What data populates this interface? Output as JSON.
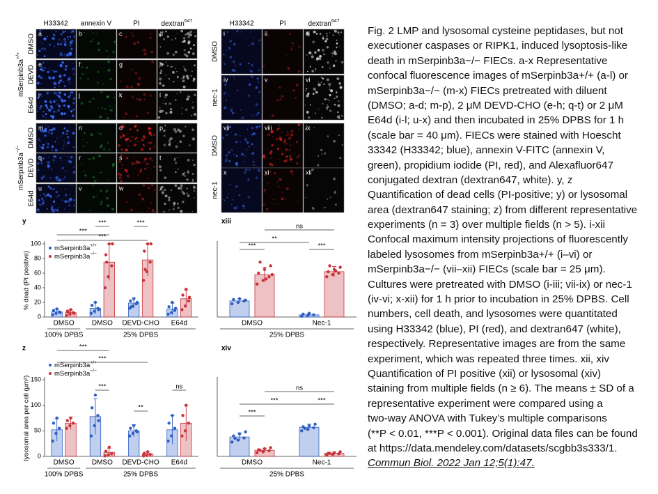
{
  "figure": {
    "left_columns": [
      "H33342",
      "annexin V",
      "PI",
      "dextran647"
    ],
    "left_groups": [
      {
        "label": "mSerpinb3a+/+",
        "rows": [
          {
            "label": "DMSO",
            "panels": [
              "a",
              "b",
              "c",
              "d"
            ]
          },
          {
            "label": "DEVD",
            "panels": [
              "e",
              "f",
              "g",
              "h"
            ]
          },
          {
            "label": "E64d",
            "panels": [
              "i",
              "j",
              "k",
              "l"
            ]
          }
        ]
      },
      {
        "label": "mSerpinb3a−/−",
        "rows": [
          {
            "label": "DMSO",
            "panels": [
              "m",
              "n",
              "o",
              "p"
            ]
          },
          {
            "label": "DEVD",
            "panels": [
              "q",
              "r",
              "s",
              "t"
            ]
          },
          {
            "label": "E64d",
            "panels": [
              "u",
              "v",
              "w",
              "x"
            ]
          }
        ]
      }
    ],
    "right_columns": [
      "H33342",
      "PI",
      "dextran647"
    ],
    "right_rows": [
      {
        "label": "DMSO",
        "panels": [
          "i",
          "ii",
          "iii"
        ]
      },
      {
        "label": "nec-1",
        "panels": [
          "iv",
          "v",
          "vi"
        ]
      },
      {
        "label": "DMSO",
        "panels": [
          "vii",
          "viii",
          "ix"
        ]
      },
      {
        "label": "nec-1",
        "panels": [
          "x",
          "xi",
          "xii"
        ]
      }
    ]
  },
  "chart_data": [
    {
      "type": "bar",
      "panel": "y",
      "y_label": "% dead (PI positive)",
      "ylim": [
        0,
        100
      ],
      "yticks": [
        0,
        20,
        40,
        60,
        80,
        100
      ],
      "categories": [
        "DMSO",
        "DMSO",
        "DEVD-CHO",
        "E64d"
      ],
      "groups": [
        "100% DPBS",
        "25% DPBS"
      ],
      "series": [
        {
          "name": "mSerpinb3a+/+",
          "color": "#2f5fc4",
          "values": [
            7,
            12,
            19,
            11
          ],
          "errors": [
            4,
            8,
            7,
            8
          ],
          "points": [
            [
              3,
              5,
              7,
              9,
              11,
              6
            ],
            [
              5,
              8,
              12,
              16,
              20,
              10
            ],
            [
              12,
              15,
              18,
              22,
              25,
              20,
              14
            ],
            [
              4,
              6,
              9,
              14,
              20,
              12
            ]
          ]
        },
        {
          "name": "mSerpinb3a−/−",
          "color": "#c8323a",
          "values": [
            6,
            75,
            78,
            25
          ],
          "errors": [
            4,
            25,
            22,
            12
          ],
          "points": [
            [
              2,
              4,
              6,
              8,
              10,
              5,
              7
            ],
            [
              40,
              55,
              70,
              85,
              100,
              100,
              75
            ],
            [
              50,
              62,
              75,
              90,
              100,
              100,
              65
            ],
            [
              10,
              15,
              22,
              30,
              38,
              27
            ]
          ]
        }
      ],
      "annotations": [
        "***",
        "***",
        "***",
        "***"
      ]
    },
    {
      "type": "bar",
      "panel": "xiii",
      "ylim": [
        0,
        100
      ],
      "categories": [
        "DMSO",
        "Nec-1"
      ],
      "groups": [
        "25% DPBS"
      ],
      "series": [
        {
          "name": "mSerpinb3a+/+",
          "color": "#2f5fc4",
          "values": [
            22,
            3
          ],
          "errors": [
            3,
            2
          ],
          "points": [
            [
              18,
              20,
              22,
              24,
              25,
              23
            ],
            [
              1,
              2,
              3,
              4,
              5
            ]
          ]
        },
        {
          "name": "mSerpinb3a−/−",
          "color": "#c8323a",
          "values": [
            58,
            62
          ],
          "errors": [
            10,
            7
          ],
          "points": [
            [
              45,
              50,
              55,
              60,
              65,
              70,
              75,
              52,
              58
            ],
            [
              55,
              58,
              60,
              62,
              65,
              68,
              70,
              63
            ]
          ]
        }
      ],
      "annotations": [
        "ns",
        "**",
        "***",
        "***"
      ]
    },
    {
      "type": "bar",
      "panel": "z",
      "y_label": "lysosomal area per cell (μm²)",
      "ylim": [
        0,
        150
      ],
      "yticks": [
        0,
        50,
        100,
        150
      ],
      "categories": [
        "DMSO",
        "DMSO",
        "DEVD-CHO",
        "E64d"
      ],
      "groups": [
        "100% DPBS",
        "25% DPBS"
      ],
      "series": [
        {
          "name": "mSerpinb3a+/+",
          "color": "#2f5fc4",
          "values": [
            52,
            78,
            50,
            52
          ],
          "errors": [
            22,
            35,
            12,
            28
          ],
          "points": [
            [
              30,
              45,
              55,
              65,
              75
            ],
            [
              40,
              60,
              80,
              95,
              120,
              70
            ],
            [
              40,
              45,
              50,
              55,
              60,
              48
            ],
            [
              30,
              40,
              55,
              65,
              80
            ]
          ]
        },
        {
          "name": "mSerpinb3a−/−",
          "color": "#c8323a",
          "values": [
            65,
            8,
            5,
            65
          ],
          "errors": [
            12,
            8,
            4,
            35
          ],
          "points": [
            [
              55,
              60,
              65,
              70,
              75
            ],
            [
              1,
              3,
              5,
              10,
              18
            ],
            [
              1,
              2,
              4,
              6,
              9
            ],
            [
              40,
              50,
              65,
              80,
              100
            ]
          ]
        }
      ],
      "annotations": [
        "***",
        "***",
        "***",
        "**",
        "ns"
      ]
    },
    {
      "type": "bar",
      "panel": "xiv",
      "ylim": [
        0,
        150
      ],
      "categories": [
        "DMSO",
        "Nec-1"
      ],
      "groups": [
        "25% DPBS"
      ],
      "series": [
        {
          "name": "mSerpinb3a+/+",
          "color": "#2f5fc4",
          "values": [
            38,
            57
          ],
          "errors": [
            8,
            6
          ],
          "points": [
            [
              28,
              32,
              36,
              40,
              44,
              48,
              35
            ],
            [
              50,
              53,
              56,
              58,
              60,
              63,
              55
            ]
          ]
        },
        {
          "name": "mSerpinb3a−/−",
          "color": "#c8323a",
          "values": [
            12,
            6
          ],
          "errors": [
            4,
            3
          ],
          "points": [
            [
              7,
              9,
              11,
              13,
              15,
              17,
              12
            ],
            [
              3,
              4,
              5,
              6,
              7,
              9,
              6
            ]
          ]
        }
      ],
      "annotations": [
        "ns",
        "***",
        "***",
        "***"
      ]
    }
  ],
  "caption": [
    "Fig. 2 LMP and lysosomal cysteine peptidases, but not",
    "executioner caspases or RIPK1, induced lysoptosis-like",
    "death in mSerpinb3a−/− FIECs. a-x Representative",
    "confocal fluorescence images of mSerpinb3a+/+ (a-l) or",
    "mSerpinb3a−/− (m-x) FIECs pretreated with diluent",
    "(DMSO; a-d; m-p), 2 μM DEVD-CHO (e-h; q-t) or 2 μM",
    "E64d (i-l; u-x) and then incubated in 25% DPBS for 1 h",
    "(scale bar = 40 μm). FIECs were stained with Hoescht",
    "33342 (H33342; blue), annexin V-FITC (annexin V,",
    "green), propidium iodide (PI, red), and Alexafluor647",
    "conjugated dextran (dextran647, white). y, z",
    "Quantification of dead cells (PI-positive; y) or lysosomal",
    "area (dextran647 staining; z) from different representative",
    "experiments (n = 3) over multiple fields (n > 5). i-xii",
    "Confocal maximum intensity projections of fluorescently",
    "labeled lysosomes from mSerpinb3a+/+ (i–vi) or",
    "mSerpinb3a−/− (vii–xii) FIECs (scale bar = 25 μm).",
    "Cultures were pretreated with DMSO (i-iii; vii-ix) or nec-1",
    "(iv-vi; x-xii) for 1 h prior to incubation in 25% DPBS. Cell",
    "numbers, cell death, and lysosomes were quantitated",
    "using H33342 (blue), PI (red), and dextran647 (white),",
    "respectively. Representative images are from the same",
    "experiment, which was repeated three times. xii, xiv",
    "Quantification of PI positive (xii) or lysosomal (xiv)",
    "staining from multiple fields (n ≥ 6). The means ± SD of a",
    "representative experiment were compared using a",
    "two-way ANOVA with Tukey’s multiple comparisons",
    "(**P < 0.01, ***P < 0.001). Original data files can be found",
    "at https://data.mendeley.com/datasets/scgbb3s333/1."
  ],
  "citation": "Commun Biol. 2022 Jan 12;5(1):47."
}
